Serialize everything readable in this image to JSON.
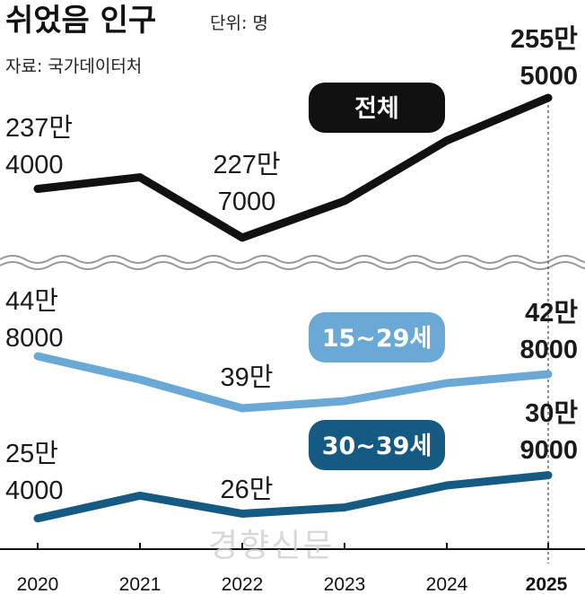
{
  "title": "쉬었음 인구",
  "unit_label": "단위: 명",
  "source": "자료: 국가데이터처",
  "watermark": "경향신문",
  "colors": {
    "total": "#111111",
    "youth": "#6aa9d6",
    "thirties": "#155a82",
    "axis": "#111111",
    "break_wave": "#999999"
  },
  "chart_data": {
    "type": "line",
    "x": [
      "2020",
      "2021",
      "2022",
      "2023",
      "2024",
      "2025"
    ],
    "series": [
      {
        "name": "전체",
        "values": [
          2374000,
          2397000,
          2277000,
          2350000,
          2470000,
          2555000
        ],
        "labels": [
          {
            "index": 0,
            "lines": [
              "237만",
              "4000"
            ]
          },
          {
            "index": 2,
            "lines": [
              "227만",
              "7000"
            ]
          },
          {
            "index": 5,
            "lines": [
              "255만",
              "5000"
            ]
          }
        ]
      },
      {
        "name": "15~29세",
        "values": [
          448000,
          422000,
          390000,
          398000,
          418000,
          428000
        ],
        "labels": [
          {
            "index": 0,
            "lines": [
              "44만",
              "8000"
            ]
          },
          {
            "index": 2,
            "lines": [
              "39만"
            ]
          },
          {
            "index": 5,
            "lines": [
              "42만",
              "8000"
            ]
          }
        ]
      },
      {
        "name": "30~39세",
        "values": [
          254000,
          283000,
          260000,
          268000,
          296000,
          309000
        ],
        "labels": [
          {
            "index": 0,
            "lines": [
              "25만",
              "4000"
            ]
          },
          {
            "index": 2,
            "lines": [
              "26만"
            ]
          },
          {
            "index": 5,
            "lines": [
              "30만",
              "9000"
            ]
          }
        ]
      }
    ],
    "axis_break": true,
    "highlight_x": "2025"
  }
}
